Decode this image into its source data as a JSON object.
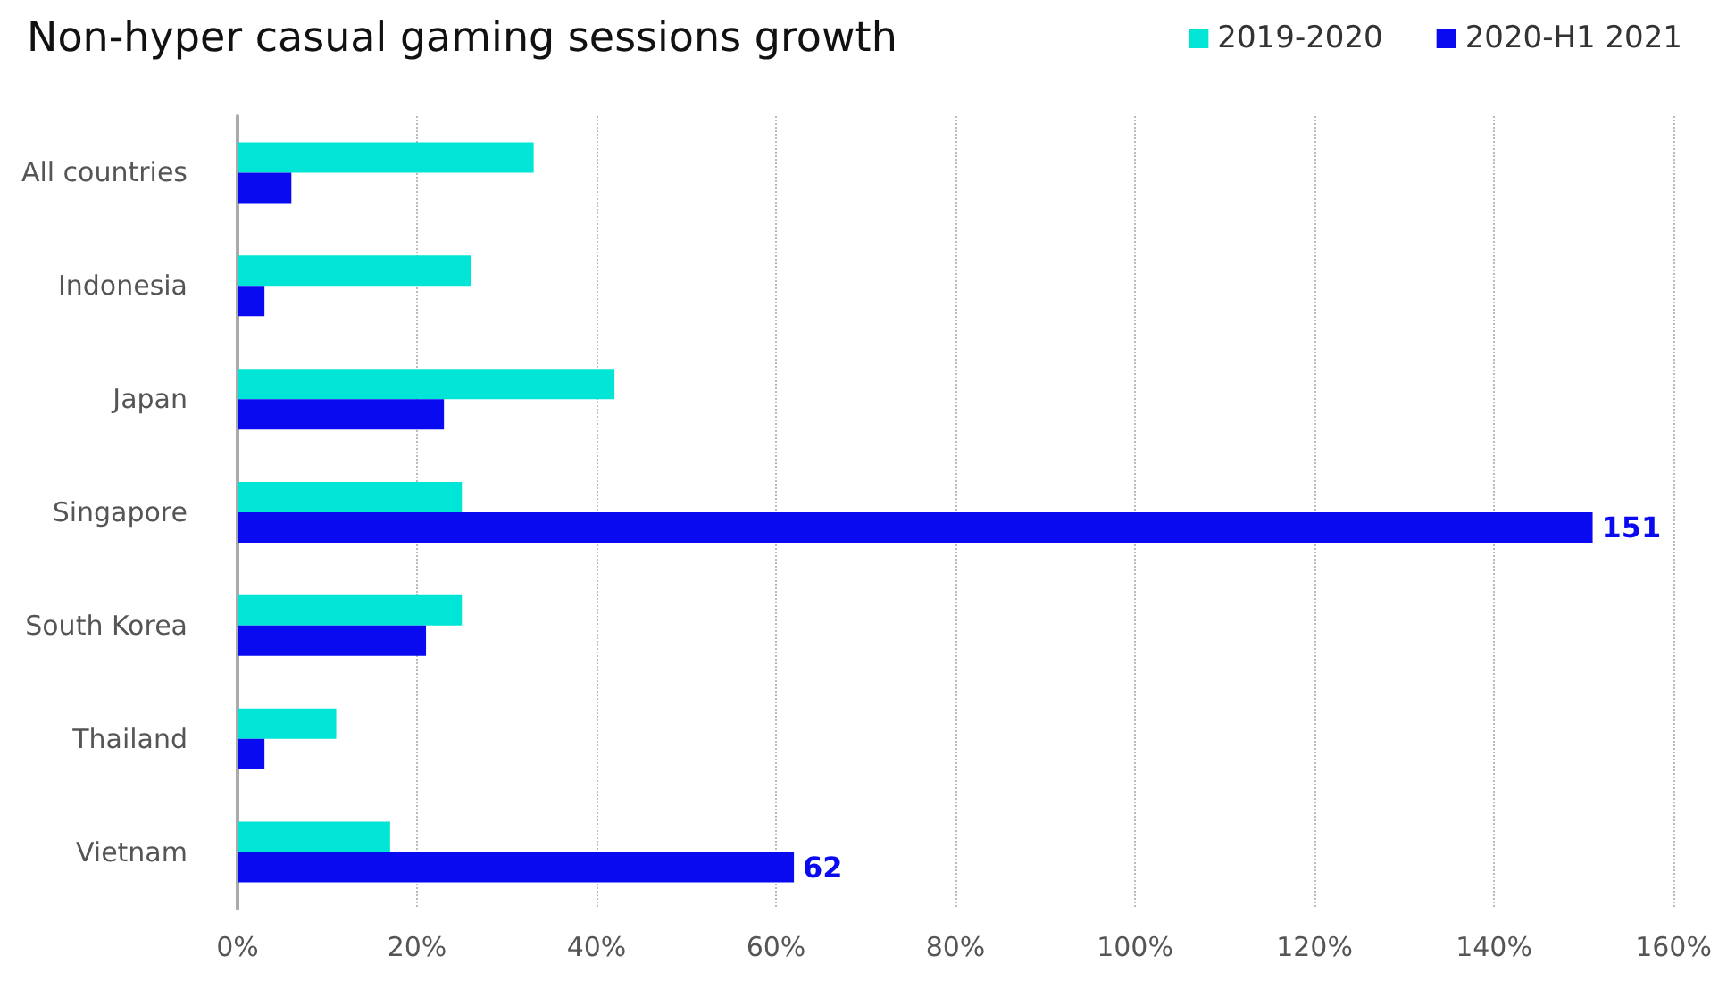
{
  "chart_data": {
    "type": "bar",
    "orientation": "horizontal",
    "title": "Non-hyper casual gaming sessions growth",
    "categories": [
      "All countries",
      "Indonesia",
      "Japan",
      "Singapore",
      "South Korea",
      "Thailand",
      "Vietnam"
    ],
    "series": [
      {
        "name": "2019-2020",
        "color": "#00e5d6",
        "values": [
          33,
          26,
          42,
          25,
          25,
          11,
          17
        ]
      },
      {
        "name": "2020-H1 2021",
        "color": "#0a0af0",
        "values": [
          6,
          3,
          23,
          151,
          21,
          3,
          62
        ],
        "value_labels": [
          null,
          null,
          null,
          "151",
          null,
          null,
          "62"
        ]
      }
    ],
    "xlim": [
      0,
      160
    ],
    "xticks": [
      {
        "value": 0,
        "label": "0%"
      },
      {
        "value": 20,
        "label": "20%"
      },
      {
        "value": 40,
        "label": "40%"
      },
      {
        "value": 60,
        "label": "60%"
      },
      {
        "value": 80,
        "label": "80%"
      },
      {
        "value": 100,
        "label": "100%"
      },
      {
        "value": 120,
        "label": "120%"
      },
      {
        "value": 140,
        "label": "140%"
      },
      {
        "value": 160,
        "label": "160%"
      }
    ],
    "grid": "x",
    "legend": "top right"
  }
}
